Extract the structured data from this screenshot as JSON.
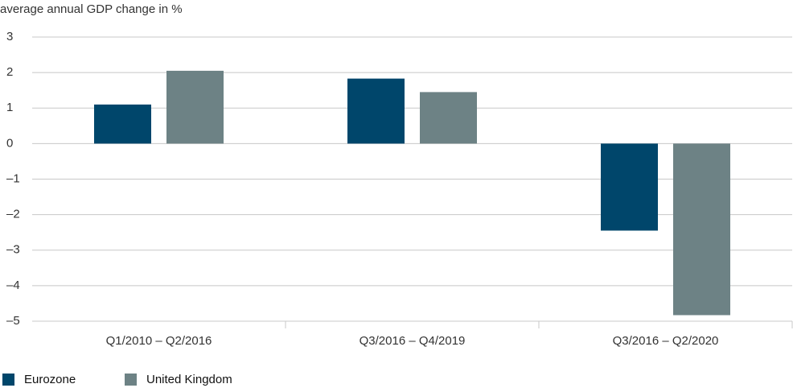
{
  "chart_data": {
    "type": "bar",
    "title": "average annual GDP change in %",
    "categories": [
      "Q1/2010 – Q2/2016",
      "Q3/2016 – Q4/2019",
      "Q3/2016 – Q2/2020"
    ],
    "series": [
      {
        "name": "Eurozone",
        "color": "#00466b",
        "values": [
          1.1,
          1.83,
          -2.45
        ]
      },
      {
        "name": "United Kingdom",
        "color": "#6d8285",
        "values": [
          2.05,
          1.45,
          -4.83
        ]
      }
    ],
    "ylim": [
      -5,
      3
    ],
    "yticks": [
      {
        "value": -5,
        "label": "–5"
      },
      {
        "value": -4,
        "label": "–4"
      },
      {
        "value": -3,
        "label": "–3"
      },
      {
        "value": -2,
        "label": "–2"
      },
      {
        "value": -1,
        "label": "–1"
      },
      0,
      1,
      2,
      3
    ],
    "grid": true
  }
}
